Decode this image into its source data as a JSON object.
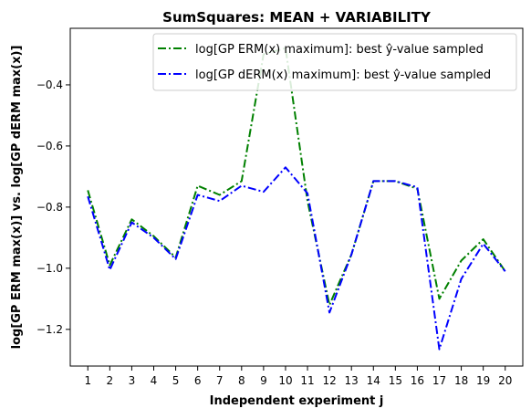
{
  "chart_data": {
    "type": "line",
    "title": "SumSquares: MEAN + VARIABILITY",
    "xlabel": "Independent experiment j",
    "ylabel": "log[GP ERM max(x)] vs. log[GP dERM max(x)]",
    "categories": [
      "1",
      "2",
      "3",
      "4",
      "5",
      "6",
      "7",
      "8",
      "9",
      "10",
      "11",
      "12",
      "13",
      "14",
      "15",
      "16",
      "17",
      "18",
      "19",
      "20"
    ],
    "x": [
      1,
      2,
      3,
      4,
      5,
      6,
      7,
      8,
      9,
      10,
      11,
      12,
      13,
      14,
      15,
      16,
      17,
      18,
      19,
      20
    ],
    "xlim": [
      0.2,
      20.8
    ],
    "ylim": [
      -1.32,
      -0.215
    ],
    "yticks": [
      -1.2,
      -1.0,
      -0.8,
      -0.6,
      -0.4
    ],
    "ytick_labels": [
      "−1.2",
      "−1.0",
      "−0.8",
      "−0.6",
      "−0.4"
    ],
    "legend_position": "upper-right",
    "grid": false,
    "series": [
      {
        "name": "log[GP ERM(x) maximum]: best ŷ-value sampled",
        "color": "#008000",
        "linestyle": "dashdot",
        "values": [
          -0.745,
          -0.99,
          -0.84,
          -0.895,
          -0.965,
          -0.73,
          -0.76,
          -0.715,
          -0.3,
          -0.28,
          -0.78,
          -1.12,
          -0.955,
          -0.715,
          -0.715,
          -0.74,
          -1.1,
          -0.975,
          -0.905,
          -1.01
        ]
      },
      {
        "name": "log[GP dERM(x) maximum]: best ŷ-value sampled",
        "color": "#0000ff",
        "linestyle": "dashdot",
        "values": [
          -0.765,
          -1.005,
          -0.85,
          -0.9,
          -0.97,
          -0.76,
          -0.78,
          -0.73,
          -0.75,
          -0.67,
          -0.755,
          -1.145,
          -0.955,
          -0.715,
          -0.715,
          -0.735,
          -1.265,
          -1.035,
          -0.92,
          -1.01
        ]
      }
    ]
  }
}
